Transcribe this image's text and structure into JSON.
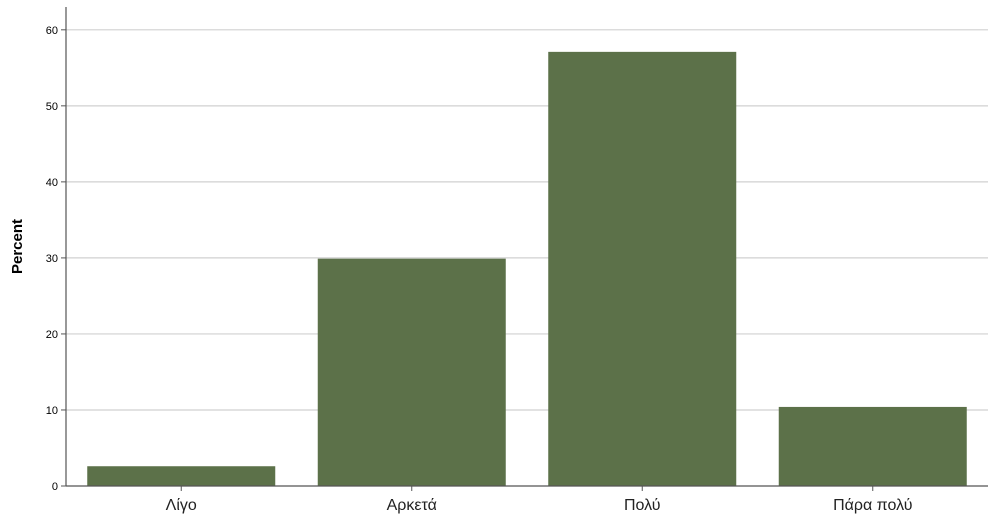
{
  "chart_data": {
    "type": "bar",
    "categories": [
      "Λίγο",
      "Αρκετά",
      "Πολύ",
      "Πάρα πολύ"
    ],
    "values": [
      2.6,
      29.9,
      57.1,
      10.4
    ],
    "title": "",
    "xlabel": "",
    "ylabel": "Percent",
    "ylim": [
      0,
      63
    ],
    "yticks": [
      0,
      10,
      20,
      30,
      40,
      50,
      60
    ],
    "grid": true,
    "bar_color": "#5c7149",
    "grid_color": "#d0d0d0",
    "axis_color": "#555555"
  }
}
